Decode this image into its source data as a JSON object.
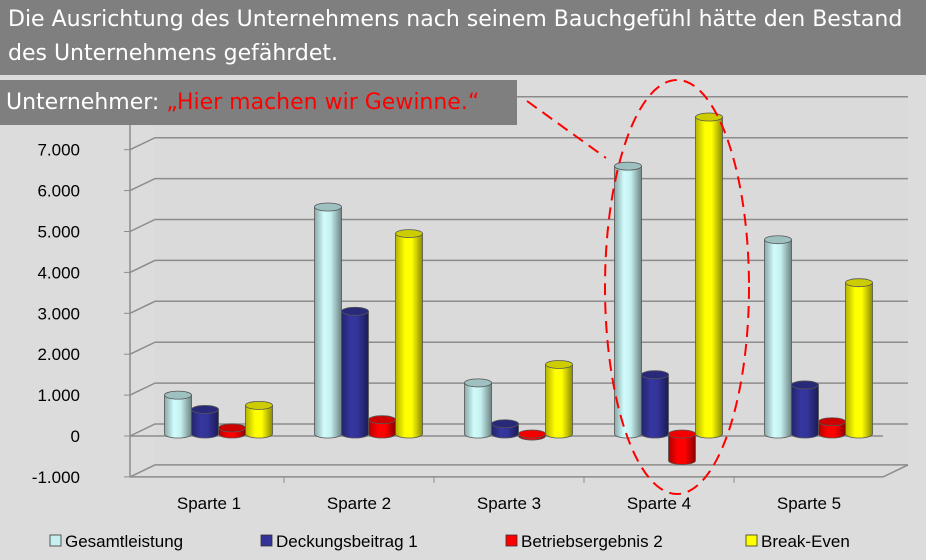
{
  "header": {
    "title": "Die Ausrichtung des Unternehmens nach seinem Bauchgefühl hätte den Bestand des Unternehmens gefährdet."
  },
  "callout": {
    "speaker": "Unternehmer: ",
    "quote": "„Hier machen wir Gewinne.“",
    "quote_color": "#ff0000"
  },
  "chart_data": {
    "type": "bar",
    "style": "3d-cylinder",
    "categories": [
      "Sparte 1",
      "Sparte 2",
      "Sparte 3",
      "Sparte 4",
      "Sparte 5"
    ],
    "series": [
      {
        "name": "Gesamtleistung",
        "color": "#c6f0f0",
        "values": [
          950,
          5550,
          1250,
          6550,
          4750
        ]
      },
      {
        "name": "Deckungsbeitrag 1",
        "color": "#333399",
        "values": [
          600,
          3000,
          250,
          1450,
          1200
        ]
      },
      {
        "name": "Betriebsergebnis 2",
        "color": "#ff0000",
        "values": [
          150,
          350,
          -50,
          -650,
          300
        ]
      },
      {
        "name": "Break-Even",
        "color": "#ffff00",
        "values": [
          700,
          4900,
          1700,
          7750,
          3700
        ]
      }
    ],
    "yticks": [
      "-1.000",
      "0",
      "1.000",
      "2.000",
      "3.000",
      "4.000",
      "5.000",
      "6.000",
      "7.000"
    ],
    "ylim": [
      -1000,
      8000
    ],
    "grid": true,
    "legend": "bottom",
    "annotation": "dashed red ellipse highlighting Sparte 4"
  }
}
